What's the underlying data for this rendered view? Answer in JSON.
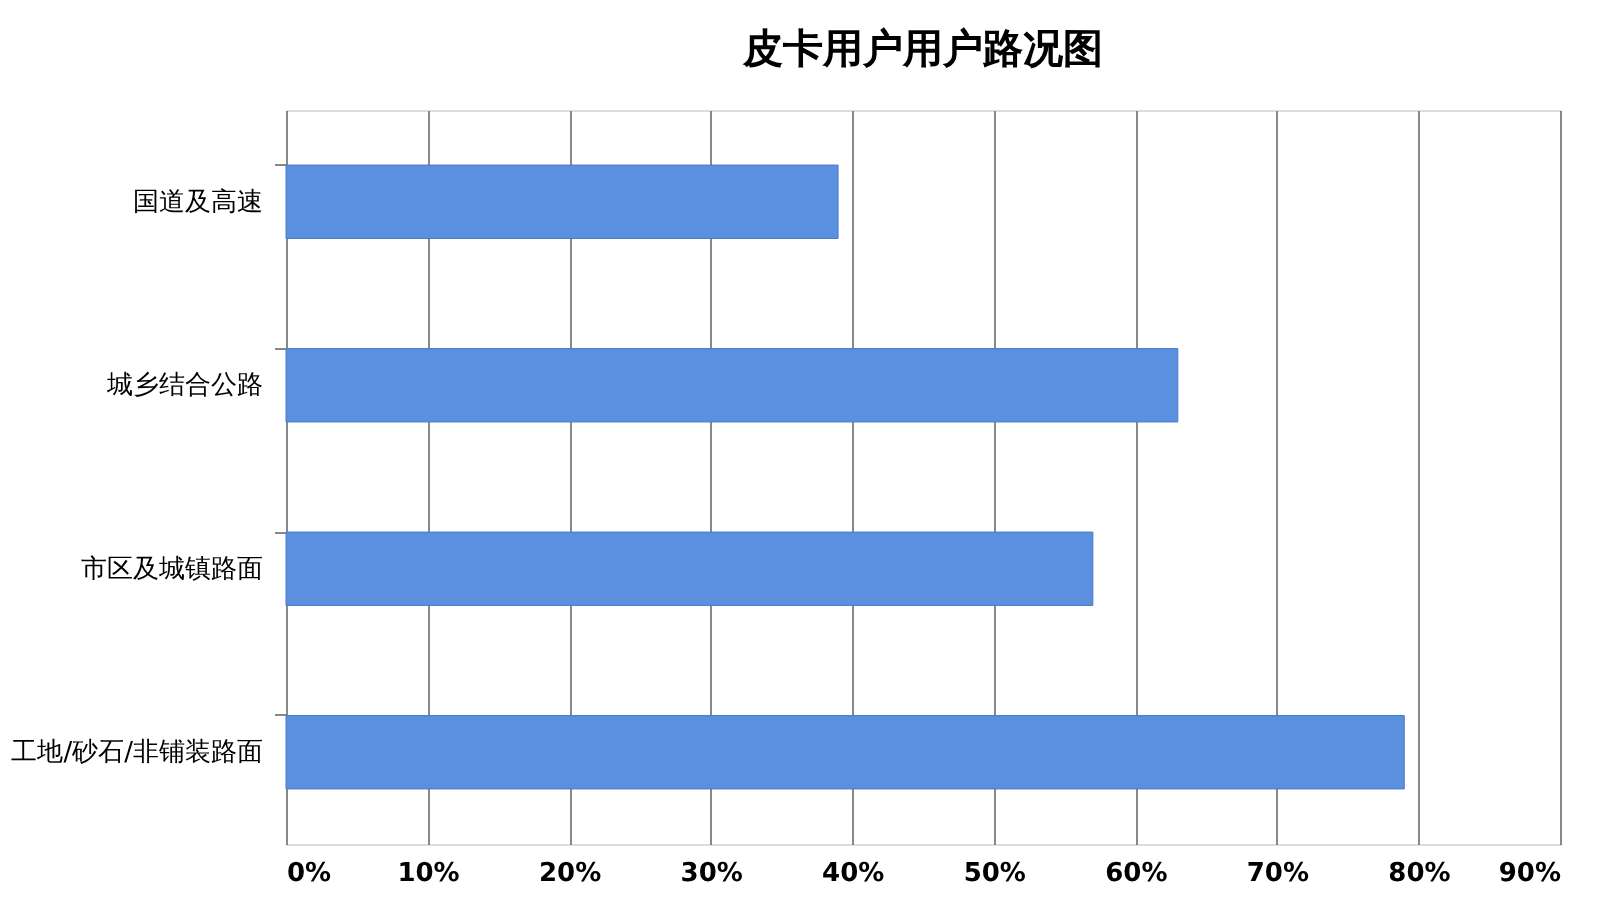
{
  "chart_data": {
    "type": "bar",
    "orientation": "horizontal",
    "title": "皮卡用户用户路况图",
    "categories": [
      "国道及高速",
      "城乡结合公路",
      "市区及城镇路面",
      "工地/砂石/非铺装路面"
    ],
    "values": [
      39,
      63,
      57,
      79
    ],
    "color": "#5b8fe0",
    "xlim": [
      0,
      90
    ],
    "xticks": [
      {
        "value": 0,
        "label": "0%"
      },
      {
        "value": 10,
        "label": "10%"
      },
      {
        "value": 20,
        "label": "20%"
      },
      {
        "value": 30,
        "label": "30%"
      },
      {
        "value": 40,
        "label": "40%"
      },
      {
        "value": 50,
        "label": "50%"
      },
      {
        "value": 60,
        "label": "60%"
      },
      {
        "value": 70,
        "label": "70%"
      },
      {
        "value": 80,
        "label": "80%"
      },
      {
        "value": 90,
        "label": "90%"
      }
    ],
    "grid": "x"
  }
}
